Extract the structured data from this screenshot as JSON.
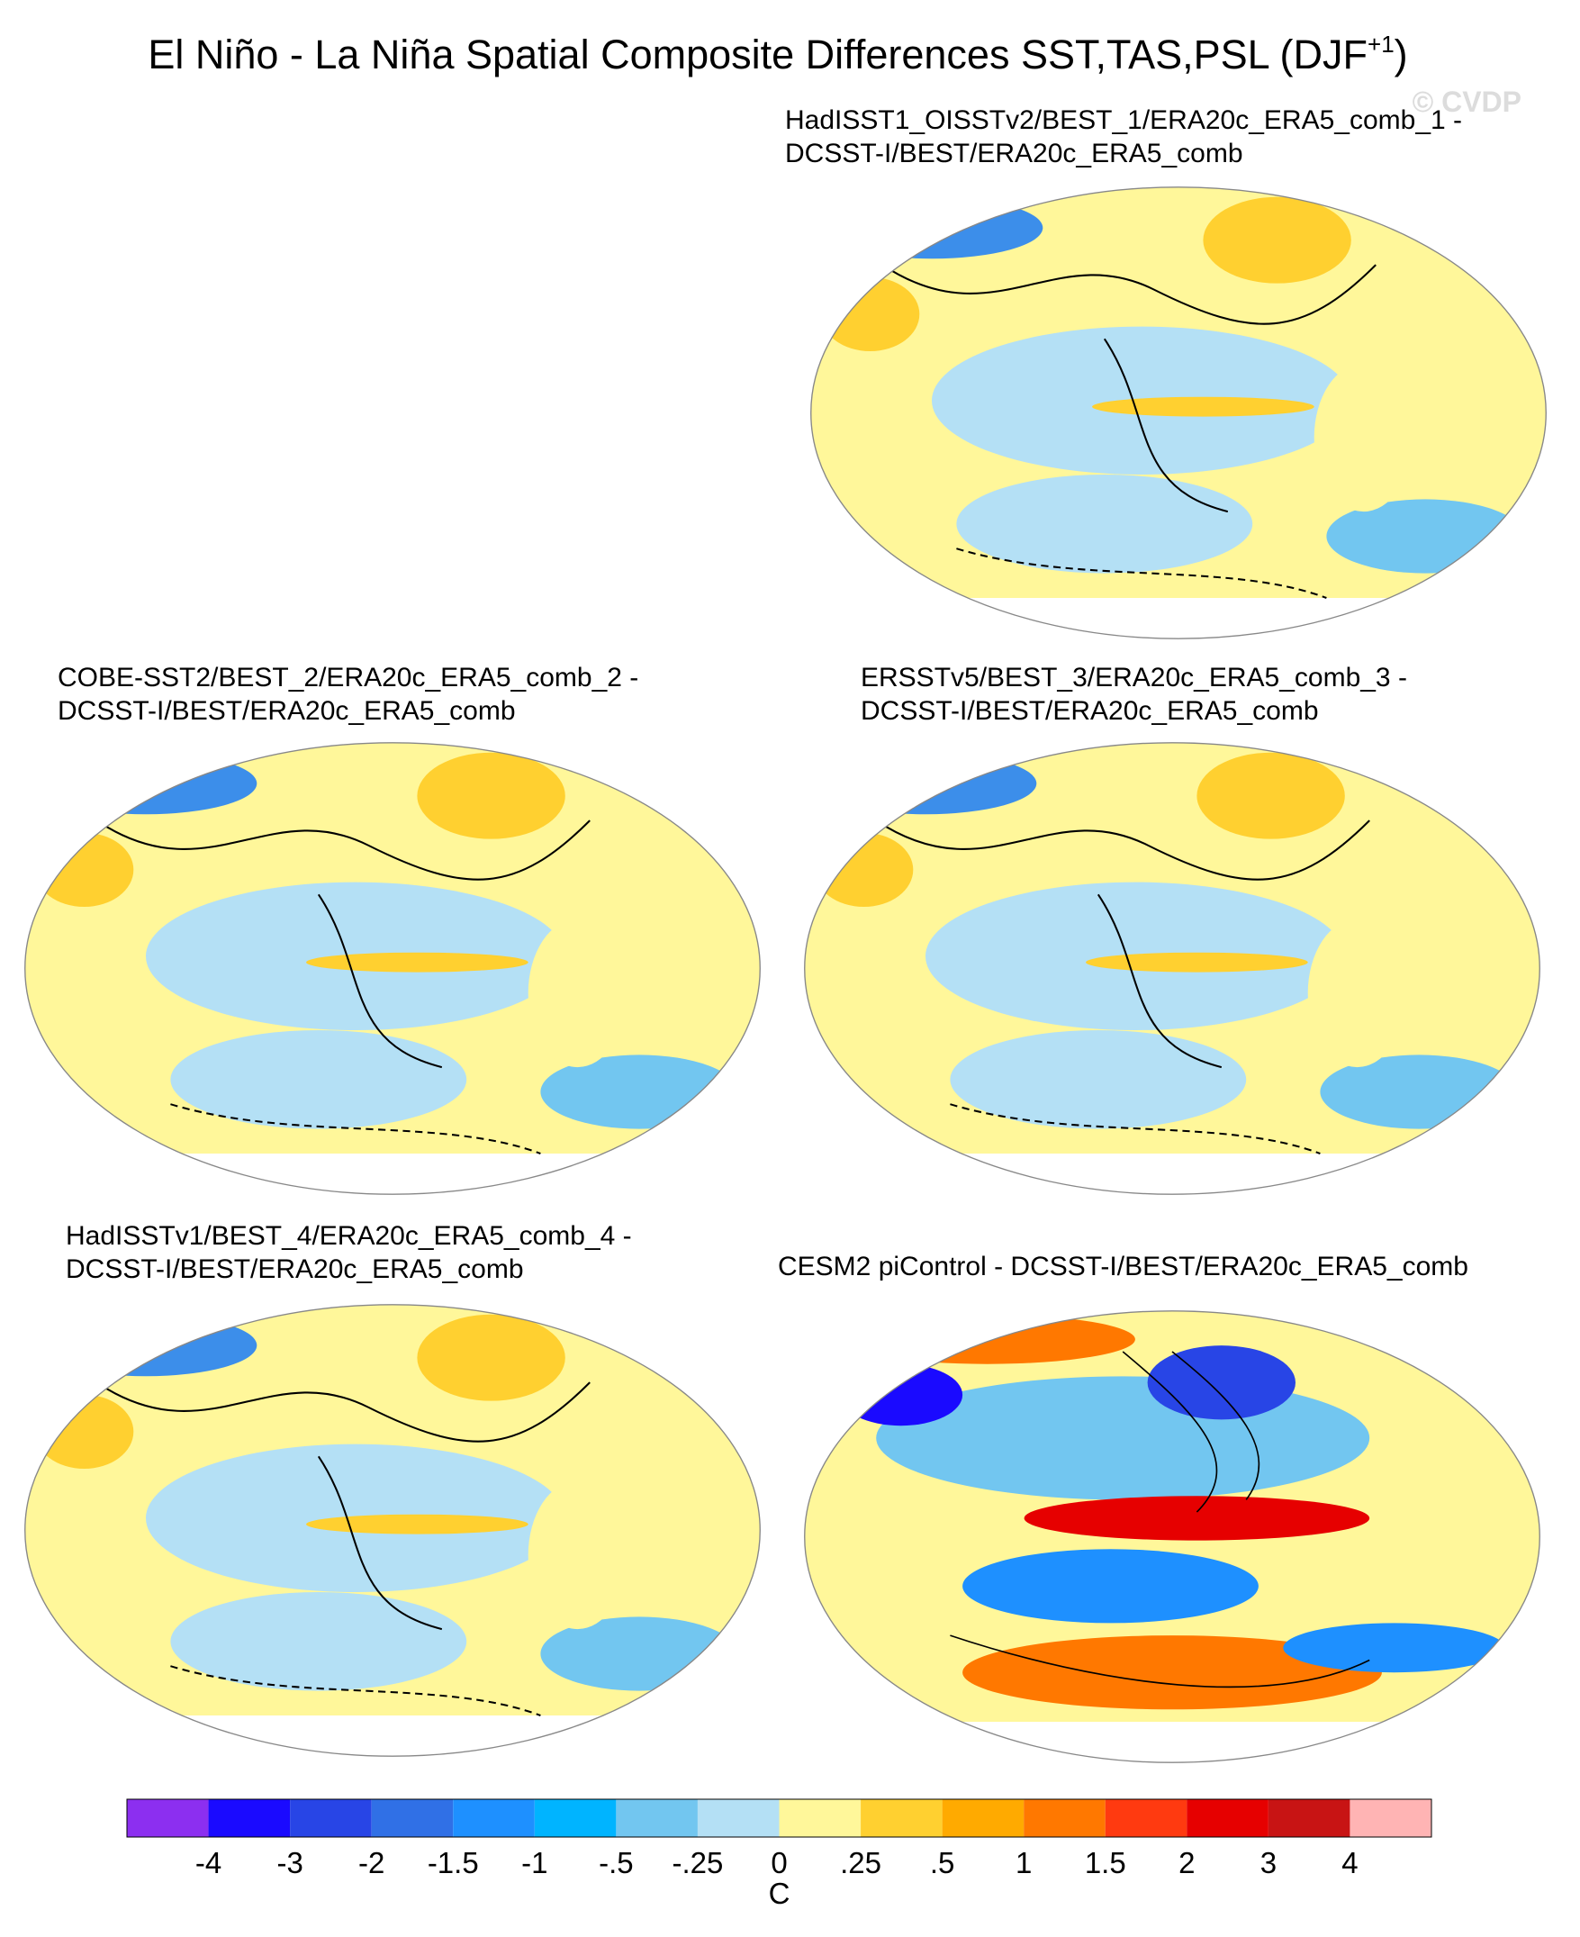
{
  "title": "El Niño - La Niña Spatial Composite Differences SST,TAS,PSL (DJF",
  "title_superscript": "+1",
  "title_close": ")",
  "watermark": "© CVDP",
  "panels": [
    {
      "title_lines": [
        "HadISST1_OISSTv2/BEST_1/ERA20c_ERA5_comb_1 -",
        "DCSST-I/BEST/ERA20c_ERA5_comb"
      ]
    },
    {
      "title_lines": [
        "COBE-SST2/BEST_2/ERA20c_ERA5_comb_2 -",
        "DCSST-I/BEST/ERA20c_ERA5_comb"
      ]
    },
    {
      "title_lines": [
        "ERSSTv5/BEST_3/ERA20c_ERA5_comb_3 -",
        "DCSST-I/BEST/ERA20c_ERA5_comb"
      ]
    },
    {
      "title_lines": [
        "HadISSTv1/BEST_4/ERA20c_ERA5_comb_4 -",
        "DCSST-I/BEST/ERA20c_ERA5_comb"
      ]
    },
    {
      "title_lines": [
        "CESM2 piControl - DCSST-I/BEST/ERA20c_ERA5_comb"
      ]
    }
  ],
  "colorbar": {
    "colors": [
      "#8c2ff0",
      "#1a0aff",
      "#2845e6",
      "#3070e6",
      "#1e90ff",
      "#00b4ff",
      "#72c6f0",
      "#b4e0f5",
      "#fff79a",
      "#ffd030",
      "#ffaa00",
      "#ff7800",
      "#ff3a10",
      "#e60000",
      "#c81414",
      "#ffb4b4"
    ],
    "labels": [
      "-4",
      "-3",
      "-2",
      "-1.5",
      "-1",
      "-.5",
      "-.25",
      "0",
      ".25",
      ".5",
      "1",
      "1.5",
      "2",
      "3",
      "4"
    ],
    "unit": "C"
  }
}
